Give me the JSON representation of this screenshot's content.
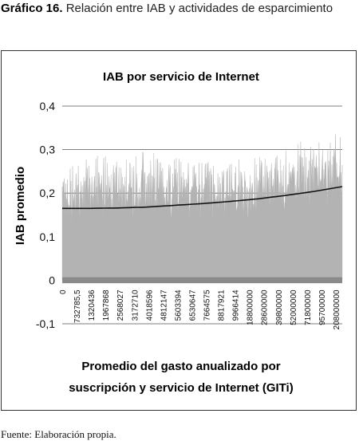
{
  "caption": {
    "label": "Gráfico 16.",
    "text": "Relación entre IAB y actividades de esparcimiento"
  },
  "source": {
    "label": "Fuente:",
    "text": "Elaboración propia."
  },
  "chart_data": {
    "type": "area",
    "title": "IAB por servicio de Internet",
    "xlabel_lines": [
      "Promedio del gasto anualizado por",
      "suscripción y servicio de Internet (GITi)"
    ],
    "ylabel": "IAB  promedio",
    "ylim": [
      -0.1,
      0.4
    ],
    "yticks": [
      0.4,
      0.3,
      0.2,
      0.1,
      0,
      -0.1
    ],
    "ytick_labels": [
      "0,4",
      "0,3",
      "0,2",
      "0,1",
      "0",
      "-0,1"
    ],
    "grid": true,
    "xtick_labels": [
      "0",
      "732785,5",
      "1320436",
      "1967868",
      "2568027",
      "3172710",
      "4018596",
      "4812147",
      "5603394",
      "6530647",
      "7664575",
      "8817921",
      "9966414",
      "18800000",
      "28600000",
      "39800000",
      "52000000",
      "71800000",
      "95700000",
      "208000000"
    ],
    "series": [
      {
        "kind": "area",
        "color": "#b3b3b3",
        "envelope_x": [
          0,
          5,
          10,
          15,
          20,
          25,
          30,
          35,
          40,
          45,
          50,
          55,
          60,
          65,
          70,
          75,
          80,
          85,
          90,
          95,
          100
        ],
        "envelope_mean": [
          0.185,
          0.19,
          0.2,
          0.205,
          0.2,
          0.205,
          0.21,
          0.205,
          0.2,
          0.205,
          0.21,
          0.2,
          0.205,
          0.2,
          0.205,
          0.215,
          0.22,
          0.225,
          0.23,
          0.235,
          0.25
        ],
        "envelope_max": [
          0.26,
          0.27,
          0.29,
          0.29,
          0.28,
          0.29,
          0.3,
          0.29,
          0.28,
          0.29,
          0.28,
          0.27,
          0.28,
          0.28,
          0.3,
          0.29,
          0.31,
          0.32,
          0.32,
          0.33,
          0.35
        ],
        "envelope_min": [
          0.13,
          0.13,
          0.14,
          0.14,
          0.13,
          0.14,
          0.14,
          0.14,
          0.13,
          0.14,
          0.14,
          0.13,
          0.14,
          0.13,
          0.14,
          0.15,
          0.15,
          0.15,
          0.16,
          0.16,
          0.17
        ]
      },
      {
        "kind": "line",
        "color": "#111111",
        "x": [
          0,
          10,
          20,
          30,
          40,
          50,
          60,
          70,
          80,
          90,
          100
        ],
        "values": [
          0.165,
          0.165,
          0.166,
          0.168,
          0.172,
          0.176,
          0.181,
          0.187,
          0.195,
          0.204,
          0.215
        ]
      }
    ],
    "baseline_band": {
      "color": "#8a8a8a",
      "from": -0.005,
      "to": 0.005
    }
  }
}
